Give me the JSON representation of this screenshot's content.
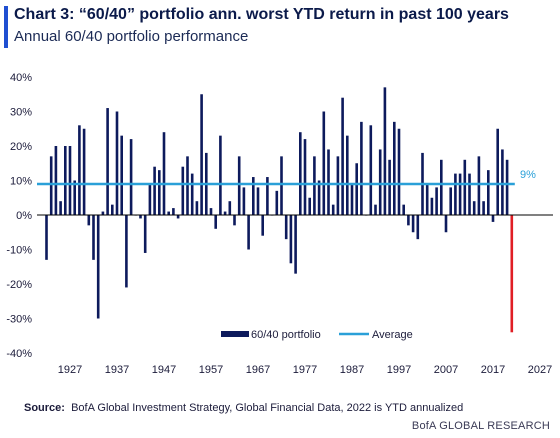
{
  "header": {
    "title": "Chart 3: “60/40” portfolio ann. worst YTD return in past 100 years",
    "subtitle": "Annual 60/40 portfolio performance"
  },
  "footer": {
    "source_label": "Source:",
    "source_text": "BofA Global Investment Strategy, Global Financial Data, 2022  is YTD annualized",
    "brand": "BofA GLOBAL RESEARCH"
  },
  "colors": {
    "accent": "#1f4fd1",
    "bar": "#0d1a5c",
    "average_line": "#2aa0d8",
    "highlight_bar": "#e01e25",
    "axis": "#000000"
  },
  "chart_data": {
    "type": "bar",
    "start_year": 1922,
    "x_ticks": [
      "1927",
      "1937",
      "1947",
      "1957",
      "1967",
      "1977",
      "1987",
      "1997",
      "2007",
      "2017",
      "2027"
    ],
    "y_ticks": [
      "40%",
      "30%",
      "20%",
      "10%",
      "0%",
      "-10%",
      "-20%",
      "-30%",
      "-40%"
    ],
    "ylim": [
      -40,
      40
    ],
    "values": [
      -13,
      17,
      20,
      4,
      20,
      20,
      10,
      26,
      25,
      -3,
      -13,
      -30,
      1,
      31,
      3,
      30,
      23,
      -21,
      22,
      0,
      -1,
      -11,
      9,
      14,
      13,
      24,
      1,
      2,
      -1,
      14,
      17,
      12,
      4,
      35,
      18,
      2,
      -4,
      23,
      1,
      4,
      -3,
      17,
      8,
      -10,
      11,
      8,
      -6,
      11,
      0,
      7,
      17,
      -7,
      -14,
      -17,
      24,
      22,
      5,
      17,
      10,
      30,
      19,
      3,
      17,
      34,
      23,
      9,
      15,
      27,
      0,
      26,
      3,
      19,
      37,
      16,
      27,
      25,
      3,
      -3,
      -5,
      -7,
      18,
      9,
      5,
      8,
      16,
      -5,
      8,
      12,
      12,
      16,
      12,
      4,
      17,
      4,
      13,
      -2,
      25,
      19,
      16,
      -34
    ],
    "highlight_index": 99,
    "average": 9,
    "average_label": "9%",
    "legend": [
      {
        "name": "60/40 portfolio",
        "kind": "bar"
      },
      {
        "name": "Average",
        "kind": "line"
      }
    ],
    "legend_placement": "bottom-center",
    "grid": false
  }
}
